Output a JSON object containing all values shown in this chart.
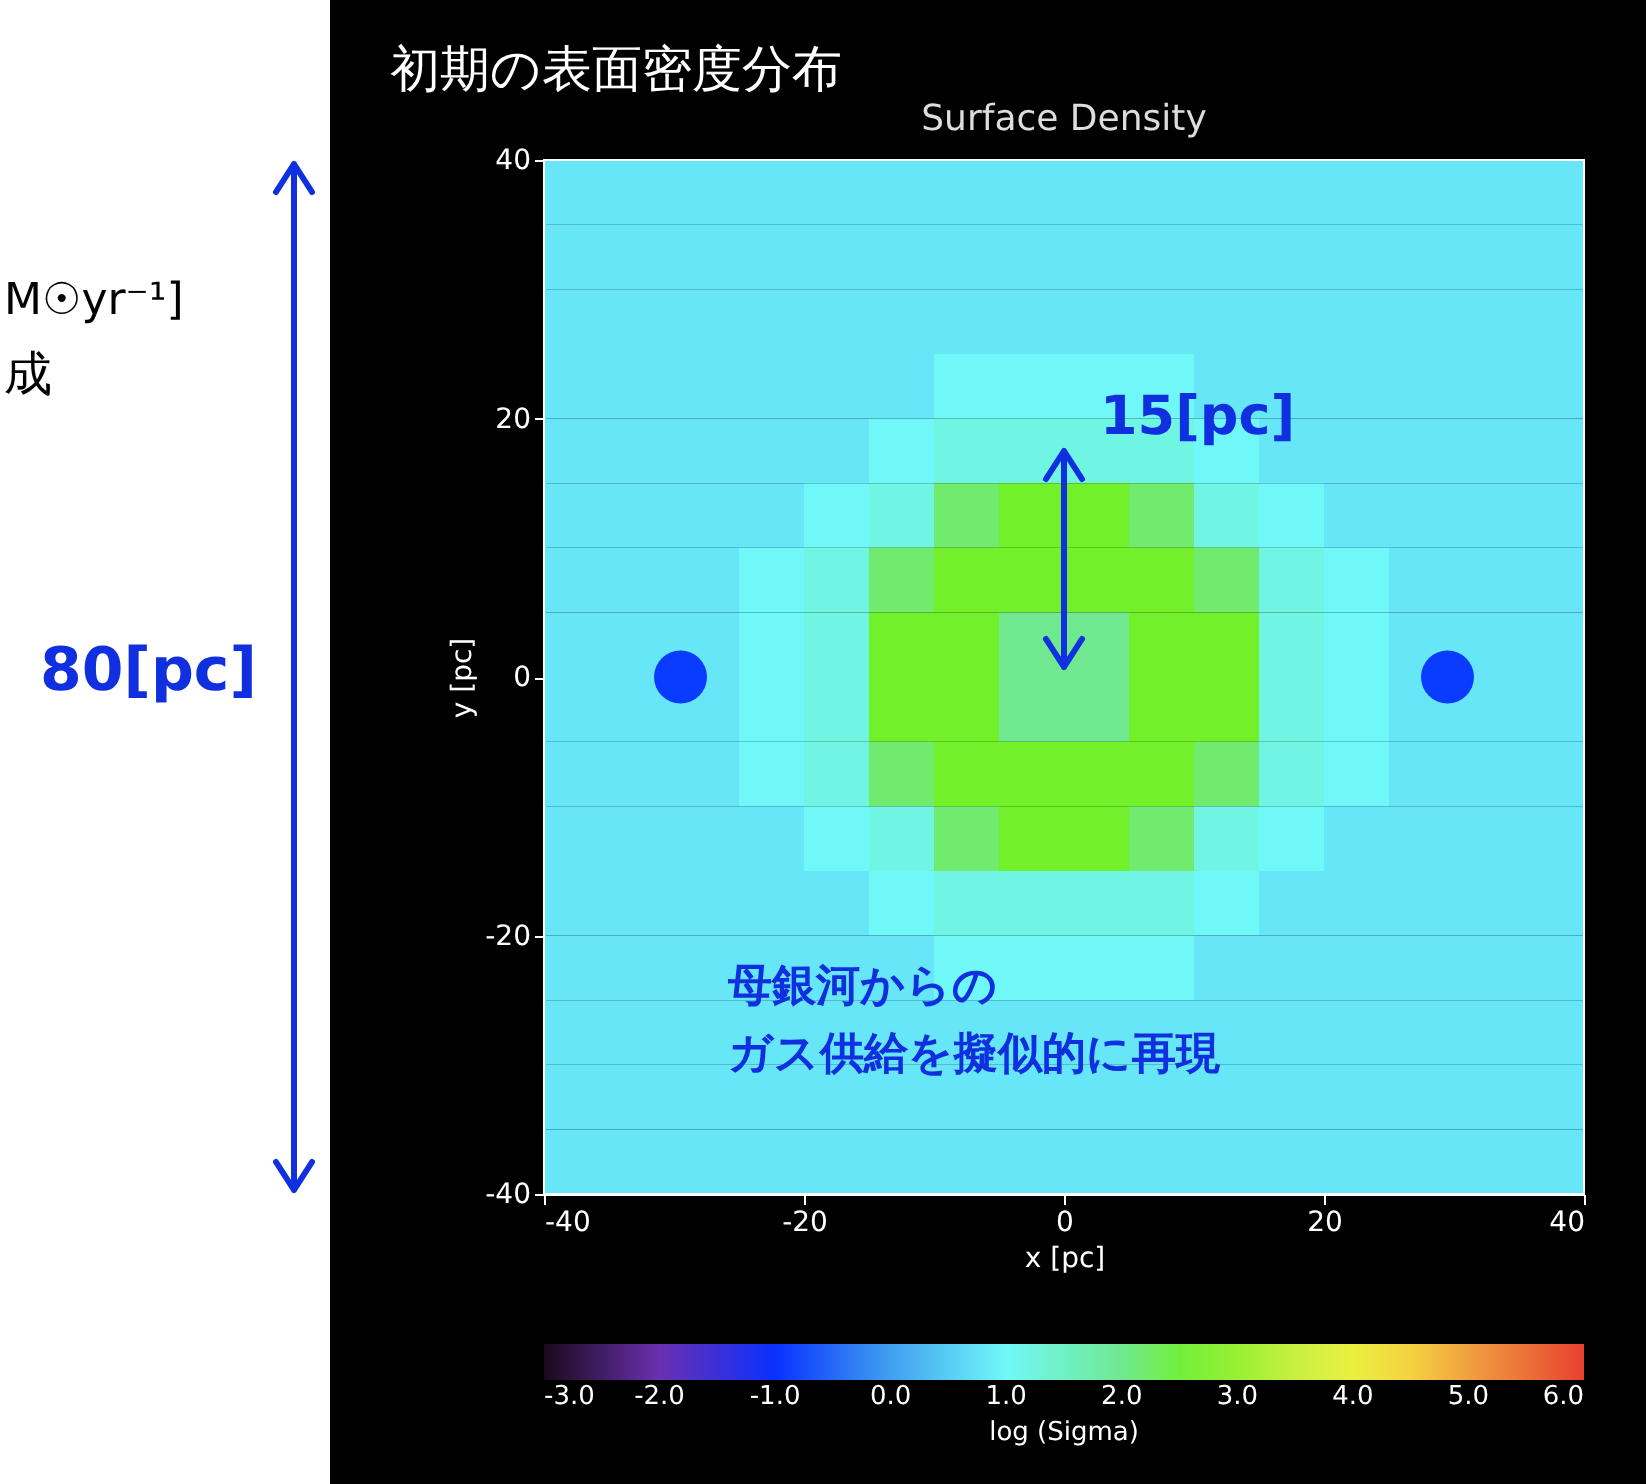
{
  "chart_data": {
    "type": "heatmap",
    "title": "初期の表面密度分布",
    "subtitle": "Surface Density",
    "xlabel": "x [pc]",
    "ylabel": "y [pc]",
    "clabel": "log (Sigma)",
    "x": [
      -37.5,
      -32.5,
      -27.5,
      -22.5,
      -17.5,
      -12.5,
      -7.5,
      -2.5,
      2.5,
      7.5,
      12.5,
      17.5,
      22.5,
      27.5,
      32.5,
      37.5
    ],
    "y": [
      37.5,
      32.5,
      27.5,
      22.5,
      17.5,
      12.5,
      7.5,
      2.5,
      -2.5,
      -7.5,
      -12.5,
      -17.5,
      -22.5,
      -27.5,
      -32.5,
      -37.5
    ],
    "cells": [
      [
        0.8,
        0.8,
        0.8,
        0.8,
        0.8,
        0.8,
        0.8,
        0.8,
        0.8,
        0.8,
        0.8,
        0.8,
        0.8,
        0.8,
        0.8,
        0.8
      ],
      [
        0.8,
        0.8,
        0.8,
        0.8,
        0.8,
        0.8,
        0.8,
        0.8,
        0.8,
        0.8,
        0.8,
        0.8,
        0.8,
        0.8,
        0.8,
        0.8
      ],
      [
        0.8,
        0.8,
        0.8,
        0.8,
        0.8,
        0.8,
        0.8,
        0.8,
        0.8,
        0.8,
        0.8,
        0.8,
        0.8,
        0.8,
        0.8,
        0.8
      ],
      [
        0.8,
        0.8,
        0.8,
        0.8,
        0.8,
        0.8,
        1.0,
        1.0,
        1.0,
        1.0,
        0.8,
        0.8,
        0.8,
        0.8,
        0.8,
        0.8
      ],
      [
        0.8,
        0.8,
        0.8,
        0.8,
        0.8,
        1.0,
        1.2,
        1.2,
        1.2,
        1.2,
        1.0,
        0.8,
        0.8,
        0.8,
        0.8,
        0.8
      ],
      [
        0.8,
        0.8,
        0.8,
        0.8,
        1.0,
        1.2,
        2.2,
        2.6,
        2.6,
        2.2,
        1.2,
        1.0,
        0.8,
        0.8,
        0.8,
        0.8
      ],
      [
        0.8,
        0.8,
        0.8,
        1.0,
        1.2,
        2.2,
        2.6,
        2.6,
        2.6,
        2.6,
        2.2,
        1.2,
        1.0,
        0.8,
        0.8,
        0.8
      ],
      [
        0.8,
        0.8,
        0.8,
        1.0,
        1.2,
        2.6,
        2.6,
        2.0,
        2.0,
        2.6,
        2.6,
        1.2,
        1.0,
        0.8,
        0.8,
        0.8
      ],
      [
        0.8,
        0.8,
        0.8,
        1.0,
        1.2,
        2.6,
        2.6,
        2.0,
        2.0,
        2.6,
        2.6,
        1.2,
        1.0,
        0.8,
        0.8,
        0.8
      ],
      [
        0.8,
        0.8,
        0.8,
        1.0,
        1.2,
        2.2,
        2.6,
        2.6,
        2.6,
        2.6,
        2.2,
        1.2,
        1.0,
        0.8,
        0.8,
        0.8
      ],
      [
        0.8,
        0.8,
        0.8,
        0.8,
        1.0,
        1.2,
        2.2,
        2.6,
        2.6,
        2.2,
        1.2,
        1.0,
        0.8,
        0.8,
        0.8,
        0.8
      ],
      [
        0.8,
        0.8,
        0.8,
        0.8,
        0.8,
        1.0,
        1.2,
        1.2,
        1.2,
        1.2,
        1.0,
        0.8,
        0.8,
        0.8,
        0.8,
        0.8
      ],
      [
        0.8,
        0.8,
        0.8,
        0.8,
        0.8,
        0.8,
        1.0,
        1.0,
        1.0,
        1.0,
        0.8,
        0.8,
        0.8,
        0.8,
        0.8,
        0.8
      ],
      [
        0.8,
        0.8,
        0.8,
        0.8,
        0.8,
        0.8,
        0.8,
        0.8,
        0.8,
        0.8,
        0.8,
        0.8,
        0.8,
        0.8,
        0.8,
        0.8
      ],
      [
        0.8,
        0.8,
        0.8,
        0.8,
        0.8,
        0.8,
        0.8,
        0.8,
        0.8,
        0.8,
        0.8,
        0.8,
        0.8,
        0.8,
        0.8,
        0.8
      ],
      [
        0.8,
        0.8,
        0.8,
        0.8,
        0.8,
        0.8,
        0.8,
        0.8,
        0.8,
        0.8,
        0.8,
        0.8,
        0.8,
        0.8,
        0.8,
        0.8
      ]
    ],
    "xlim": [
      -40,
      40
    ],
    "ylim": [
      -40,
      40
    ],
    "xticks": [
      -40,
      -20,
      0,
      20,
      40
    ],
    "yticks": [
      -40,
      -20,
      0,
      20,
      40
    ],
    "clim": [
      -3,
      6
    ],
    "cticks": [
      {
        "value": -3,
        "label": "-3.0"
      },
      {
        "value": -2,
        "label": "-2.0"
      },
      {
        "value": -1,
        "label": "-1.0"
      },
      {
        "value": 0,
        "label": "0.0"
      },
      {
        "value": 1,
        "label": "1.0"
      },
      {
        "value": 2,
        "label": "2.0"
      },
      {
        "value": 3,
        "label": "3.0"
      },
      {
        "value": 4,
        "label": "4.0"
      },
      {
        "value": 5,
        "label": "5.0"
      },
      {
        "value": 6,
        "label": "6.0"
      }
    ],
    "series": [
      {
        "type": "scatter",
        "color": "#0a3cff",
        "x": [
          -29.5,
          29.5
        ],
        "values": [
          0,
          0
        ]
      }
    ],
    "marker": "circle",
    "grid": false,
    "annotations": [
      "15[pc]",
      "80[pc]",
      "母銀河からの",
      "ガス供給を擬似的に再現",
      "M☉yr⁻¹]",
      "成"
    ]
  }
}
